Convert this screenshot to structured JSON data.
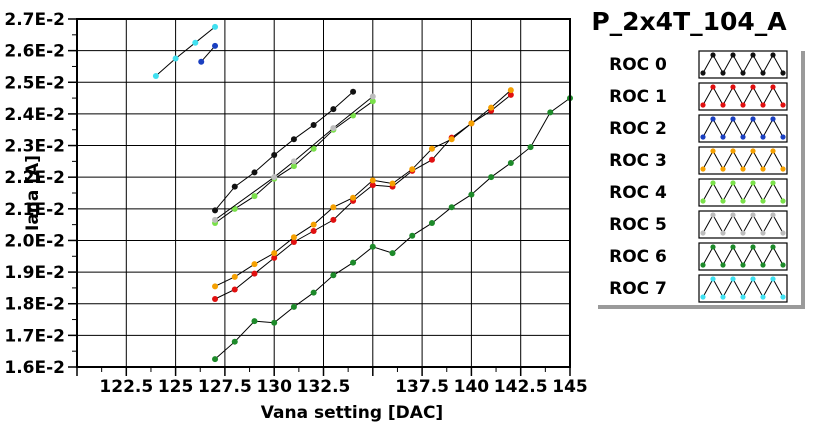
{
  "chart_data": {
    "type": "scatter",
    "title": "P_2x4T_104_A",
    "xlabel": "Vana setting [DAC]",
    "ylabel": "Iana [A]",
    "xlim": [
      120,
      145
    ],
    "ylim": [
      0.016,
      0.027
    ],
    "x_ticks": [
      {
        "value": 122.5,
        "label": "122.5"
      },
      {
        "value": 125,
        "label": "125"
      },
      {
        "value": 127.5,
        "label": "127.5"
      },
      {
        "value": 130,
        "label": "130"
      },
      {
        "value": 132.5,
        "label": "132.5"
      },
      {
        "value": 137.5,
        "label": "137.5"
      },
      {
        "value": 140,
        "label": "140"
      },
      {
        "value": 142.5,
        "label": "142.5"
      },
      {
        "value": 145,
        "label": "145"
      }
    ],
    "x_grid": [
      122.5,
      125,
      127.5,
      130,
      132.5,
      135,
      137.5,
      140,
      142.5,
      145
    ],
    "y_ticks": [
      {
        "value": 0.016,
        "label": "1.6E-2"
      },
      {
        "value": 0.017,
        "label": "1.7E-2"
      },
      {
        "value": 0.018,
        "label": "1.8E-2"
      },
      {
        "value": 0.019,
        "label": "1.9E-2"
      },
      {
        "value": 0.02,
        "label": "2.0E-2"
      },
      {
        "value": 0.021,
        "label": "2.1E-2"
      },
      {
        "value": 0.022,
        "label": "2.2E-2"
      },
      {
        "value": 0.023,
        "label": "2.3E-2"
      },
      {
        "value": 0.024,
        "label": "2.4E-2"
      },
      {
        "value": 0.025,
        "label": "2.5E-2"
      },
      {
        "value": 0.026,
        "label": "2.6E-2"
      },
      {
        "value": 0.027,
        "label": "2.7E-2"
      }
    ],
    "grid": true,
    "legend_position": "right",
    "series": [
      {
        "name": "ROC 0",
        "color": "#111111",
        "x": [
          127,
          128,
          129,
          130,
          131,
          132,
          133,
          134
        ],
        "y": [
          0.02095,
          0.0217,
          0.02215,
          0.0227,
          0.0232,
          0.02365,
          0.02415,
          0.0247
        ]
      },
      {
        "name": "ROC 1",
        "color": "#e01010",
        "x": [
          127,
          128,
          129,
          130,
          131,
          132,
          133,
          134,
          135,
          136,
          137,
          138,
          139,
          140,
          141,
          142
        ],
        "y": [
          0.01815,
          0.01845,
          0.01895,
          0.01945,
          0.01995,
          0.0203,
          0.02065,
          0.02125,
          0.02175,
          0.0217,
          0.0222,
          0.02255,
          0.02325,
          0.0237,
          0.0241,
          0.0246
        ]
      },
      {
        "name": "ROC 2",
        "color": "#1a3fc0",
        "x": [
          126.3,
          127
        ],
        "y": [
          0.02565,
          0.02615
        ]
      },
      {
        "name": "ROC 3",
        "color": "#f5a000",
        "x": [
          127,
          128,
          129,
          130,
          131,
          132,
          133,
          134,
          135,
          136,
          137,
          138,
          139,
          140,
          141,
          142
        ],
        "y": [
          0.01855,
          0.01885,
          0.01925,
          0.0196,
          0.0201,
          0.0205,
          0.02105,
          0.02135,
          0.0219,
          0.0218,
          0.02225,
          0.0229,
          0.0232,
          0.0237,
          0.0242,
          0.02475
        ]
      },
      {
        "name": "ROC 4",
        "color": "#7ae04a",
        "x": [
          127,
          128,
          129,
          130,
          131,
          132,
          133,
          134,
          135
        ],
        "y": [
          0.02055,
          0.021,
          0.0214,
          0.02195,
          0.02235,
          0.0229,
          0.0235,
          0.02395,
          0.0244
        ]
      },
      {
        "name": "ROC 5",
        "color": "#bdbdbd",
        "x": [
          127,
          130,
          131,
          133,
          135
        ],
        "y": [
          0.02065,
          0.022,
          0.0225,
          0.02355,
          0.02455
        ]
      },
      {
        "name": "ROC 6",
        "color": "#1d8a2a",
        "x": [
          127,
          128,
          129,
          130,
          131,
          132,
          133,
          134,
          135,
          136,
          137,
          138,
          139,
          140,
          141,
          142,
          143,
          144,
          145
        ],
        "y": [
          0.01625,
          0.0168,
          0.01745,
          0.0174,
          0.0179,
          0.01835,
          0.0189,
          0.0193,
          0.0198,
          0.0196,
          0.02015,
          0.02055,
          0.02105,
          0.02145,
          0.022,
          0.02245,
          0.02295,
          0.02405,
          0.0245
        ]
      },
      {
        "name": "ROC 7",
        "color": "#40e0f0",
        "x": [
          124,
          125,
          126,
          127
        ],
        "y": [
          0.0252,
          0.02575,
          0.02625,
          0.02675
        ]
      }
    ]
  }
}
